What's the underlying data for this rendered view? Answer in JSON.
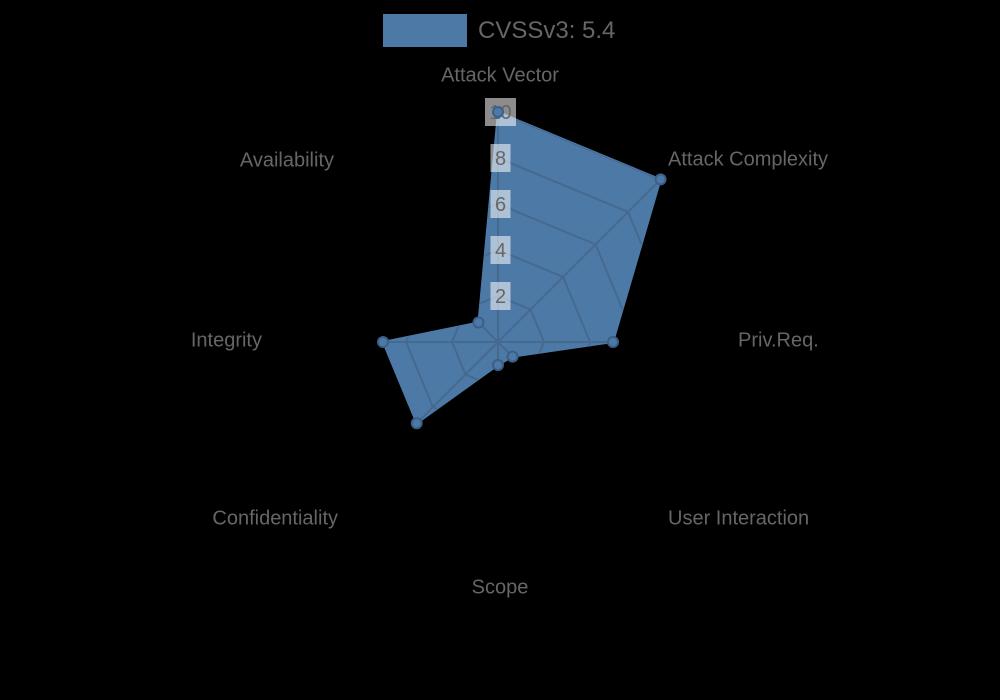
{
  "legend_label": "CVSSv3: 5.4",
  "chart_data": {
    "type": "radar",
    "title": "CVSSv3: 5.4",
    "legend_label": "CVSSv3: 5.4",
    "legend_position": "top",
    "axes": [
      "Attack Vector",
      "Attack Complexity",
      "Priv.Req.",
      "User Interaction",
      "Scope",
      "Confidentiality",
      "Integrity",
      "Availability"
    ],
    "series": [
      {
        "name": "CVSSv3: 5.4",
        "values": [
          10,
          10,
          5,
          0.9,
          1,
          5,
          5,
          1.2
        ]
      }
    ],
    "ticks": [
      2,
      4,
      6,
      8,
      10
    ],
    "range": [
      0,
      10
    ],
    "grid": true,
    "colors": {
      "background": "#000000",
      "fill": "#4d79a7",
      "grid_line": "#46698e",
      "point_stroke": "#3c5f88",
      "tick_backdrop": "rgba(255,255,255,0.55)",
      "text": "#666666"
    }
  }
}
